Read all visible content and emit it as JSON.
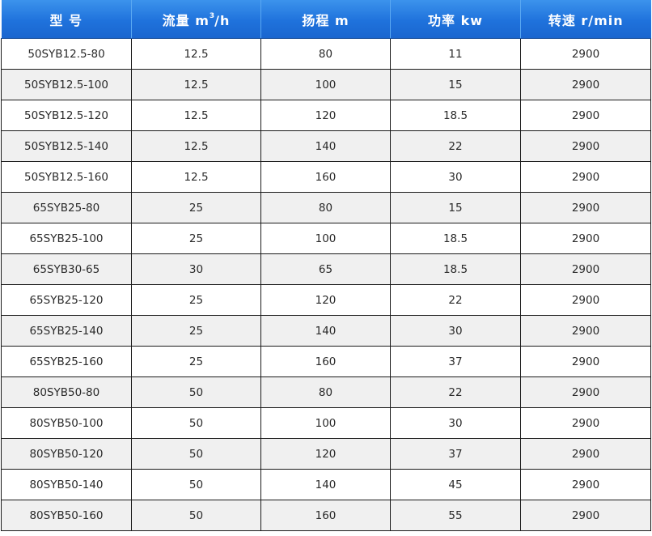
{
  "table": {
    "headers": [
      {
        "main": "型  号",
        "sup": "",
        "tail": ""
      },
      {
        "main": "流量 m",
        "sup": "3",
        "tail": "/h"
      },
      {
        "main": "扬程 m",
        "sup": "",
        "tail": ""
      },
      {
        "main": "功率 kw",
        "sup": "",
        "tail": ""
      },
      {
        "main": "转速 r/min",
        "sup": "",
        "tail": ""
      }
    ],
    "rows": [
      [
        "50SYB12.5-80",
        "12.5",
        "80",
        "11",
        "2900"
      ],
      [
        "50SYB12.5-100",
        "12.5",
        "100",
        "15",
        "2900"
      ],
      [
        "50SYB12.5-120",
        "12.5",
        "120",
        "18.5",
        "2900"
      ],
      [
        "50SYB12.5-140",
        "12.5",
        "140",
        "22",
        "2900"
      ],
      [
        "50SYB12.5-160",
        "12.5",
        "160",
        "30",
        "2900"
      ],
      [
        "65SYB25-80",
        "25",
        "80",
        "15",
        "2900"
      ],
      [
        "65SYB25-100",
        "25",
        "100",
        "18.5",
        "2900"
      ],
      [
        "65SYB30-65",
        "30",
        "65",
        "18.5",
        "2900"
      ],
      [
        "65SYB25-120",
        "25",
        "120",
        "22",
        "2900"
      ],
      [
        "65SYB25-140",
        "25",
        "140",
        "30",
        "2900"
      ],
      [
        "65SYB25-160",
        "25",
        "160",
        "37",
        "2900"
      ],
      [
        "80SYB50-80",
        "50",
        "80",
        "22",
        "2900"
      ],
      [
        "80SYB50-100",
        "50",
        "100",
        "30",
        "2900"
      ],
      [
        "80SYB50-120",
        "50",
        "120",
        "37",
        "2900"
      ],
      [
        "80SYB50-140",
        "50",
        "140",
        "45",
        "2900"
      ],
      [
        "80SYB50-160",
        "50",
        "160",
        "55",
        "2900"
      ]
    ]
  },
  "colors": {
    "header_top": "#3c93ec",
    "header_bottom": "#1a66cf",
    "header_text": "#ffffff",
    "row_alt": "#f0f0f0",
    "grid": "#1a1a1a"
  }
}
